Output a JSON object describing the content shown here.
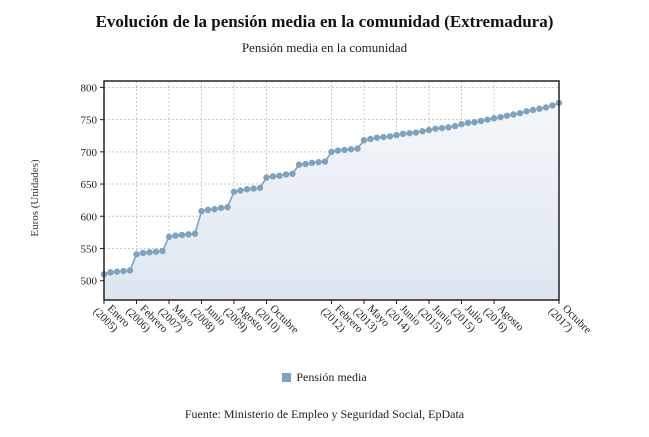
{
  "chart_data": {
    "type": "area",
    "title": "Evolución de la pensión media en la comunidad (Extremadura)",
    "subtitle": "Pensión media en la comunidad",
    "ylabel": "Euros (Unidades)",
    "source": "Fuente: Ministerio de Empleo y Seguridad Social, EpData",
    "ylim": [
      470,
      810
    ],
    "yticks": [
      500,
      550,
      600,
      650,
      700,
      750,
      800
    ],
    "grid": true,
    "legend_position": "bottom",
    "series": [
      {
        "name": "Pensión media",
        "color": "#7ea3c0",
        "values": [
          510,
          513,
          514,
          515,
          516,
          541,
          543,
          544,
          545,
          546,
          568,
          570,
          571,
          572,
          573,
          608,
          610,
          611,
          613,
          614,
          638,
          640,
          642,
          643,
          644,
          660,
          662,
          663,
          665,
          666,
          680,
          681,
          683,
          684,
          685,
          700,
          702,
          703,
          704,
          705,
          718,
          720,
          722,
          723,
          724,
          726,
          728,
          729,
          730,
          732,
          734,
          736,
          737,
          738,
          740,
          743,
          745,
          746,
          748,
          750,
          752,
          754,
          756,
          758,
          760,
          763,
          765,
          767,
          769,
          772,
          776
        ]
      }
    ],
    "xticks": [
      {
        "month": "Enero",
        "year": "(2005)",
        "index": 0
      },
      {
        "month": "Febrero",
        "year": "(2006)",
        "index": 5
      },
      {
        "month": "Mayo",
        "year": "(2007)",
        "index": 10
      },
      {
        "month": "Junio",
        "year": "(2008)",
        "index": 15
      },
      {
        "month": "Agosto",
        "year": "(2009)",
        "index": 20
      },
      {
        "month": "Octubre",
        "year": "(2010)",
        "index": 25
      },
      {
        "month": "Febrero",
        "year": "(2012)",
        "index": 35
      },
      {
        "month": "Mayo",
        "year": "(2013)",
        "index": 40
      },
      {
        "month": "Junio",
        "year": "(2014)",
        "index": 45
      },
      {
        "month": "Junio",
        "year": "(2015)",
        "index": 50
      },
      {
        "month": "Julio",
        "year": "(2015)",
        "index": 55
      },
      {
        "month": "Agosto",
        "year": "(2016)",
        "index": 60
      },
      {
        "month": "Octubre",
        "year": "(2017)",
        "index": 70
      }
    ]
  }
}
